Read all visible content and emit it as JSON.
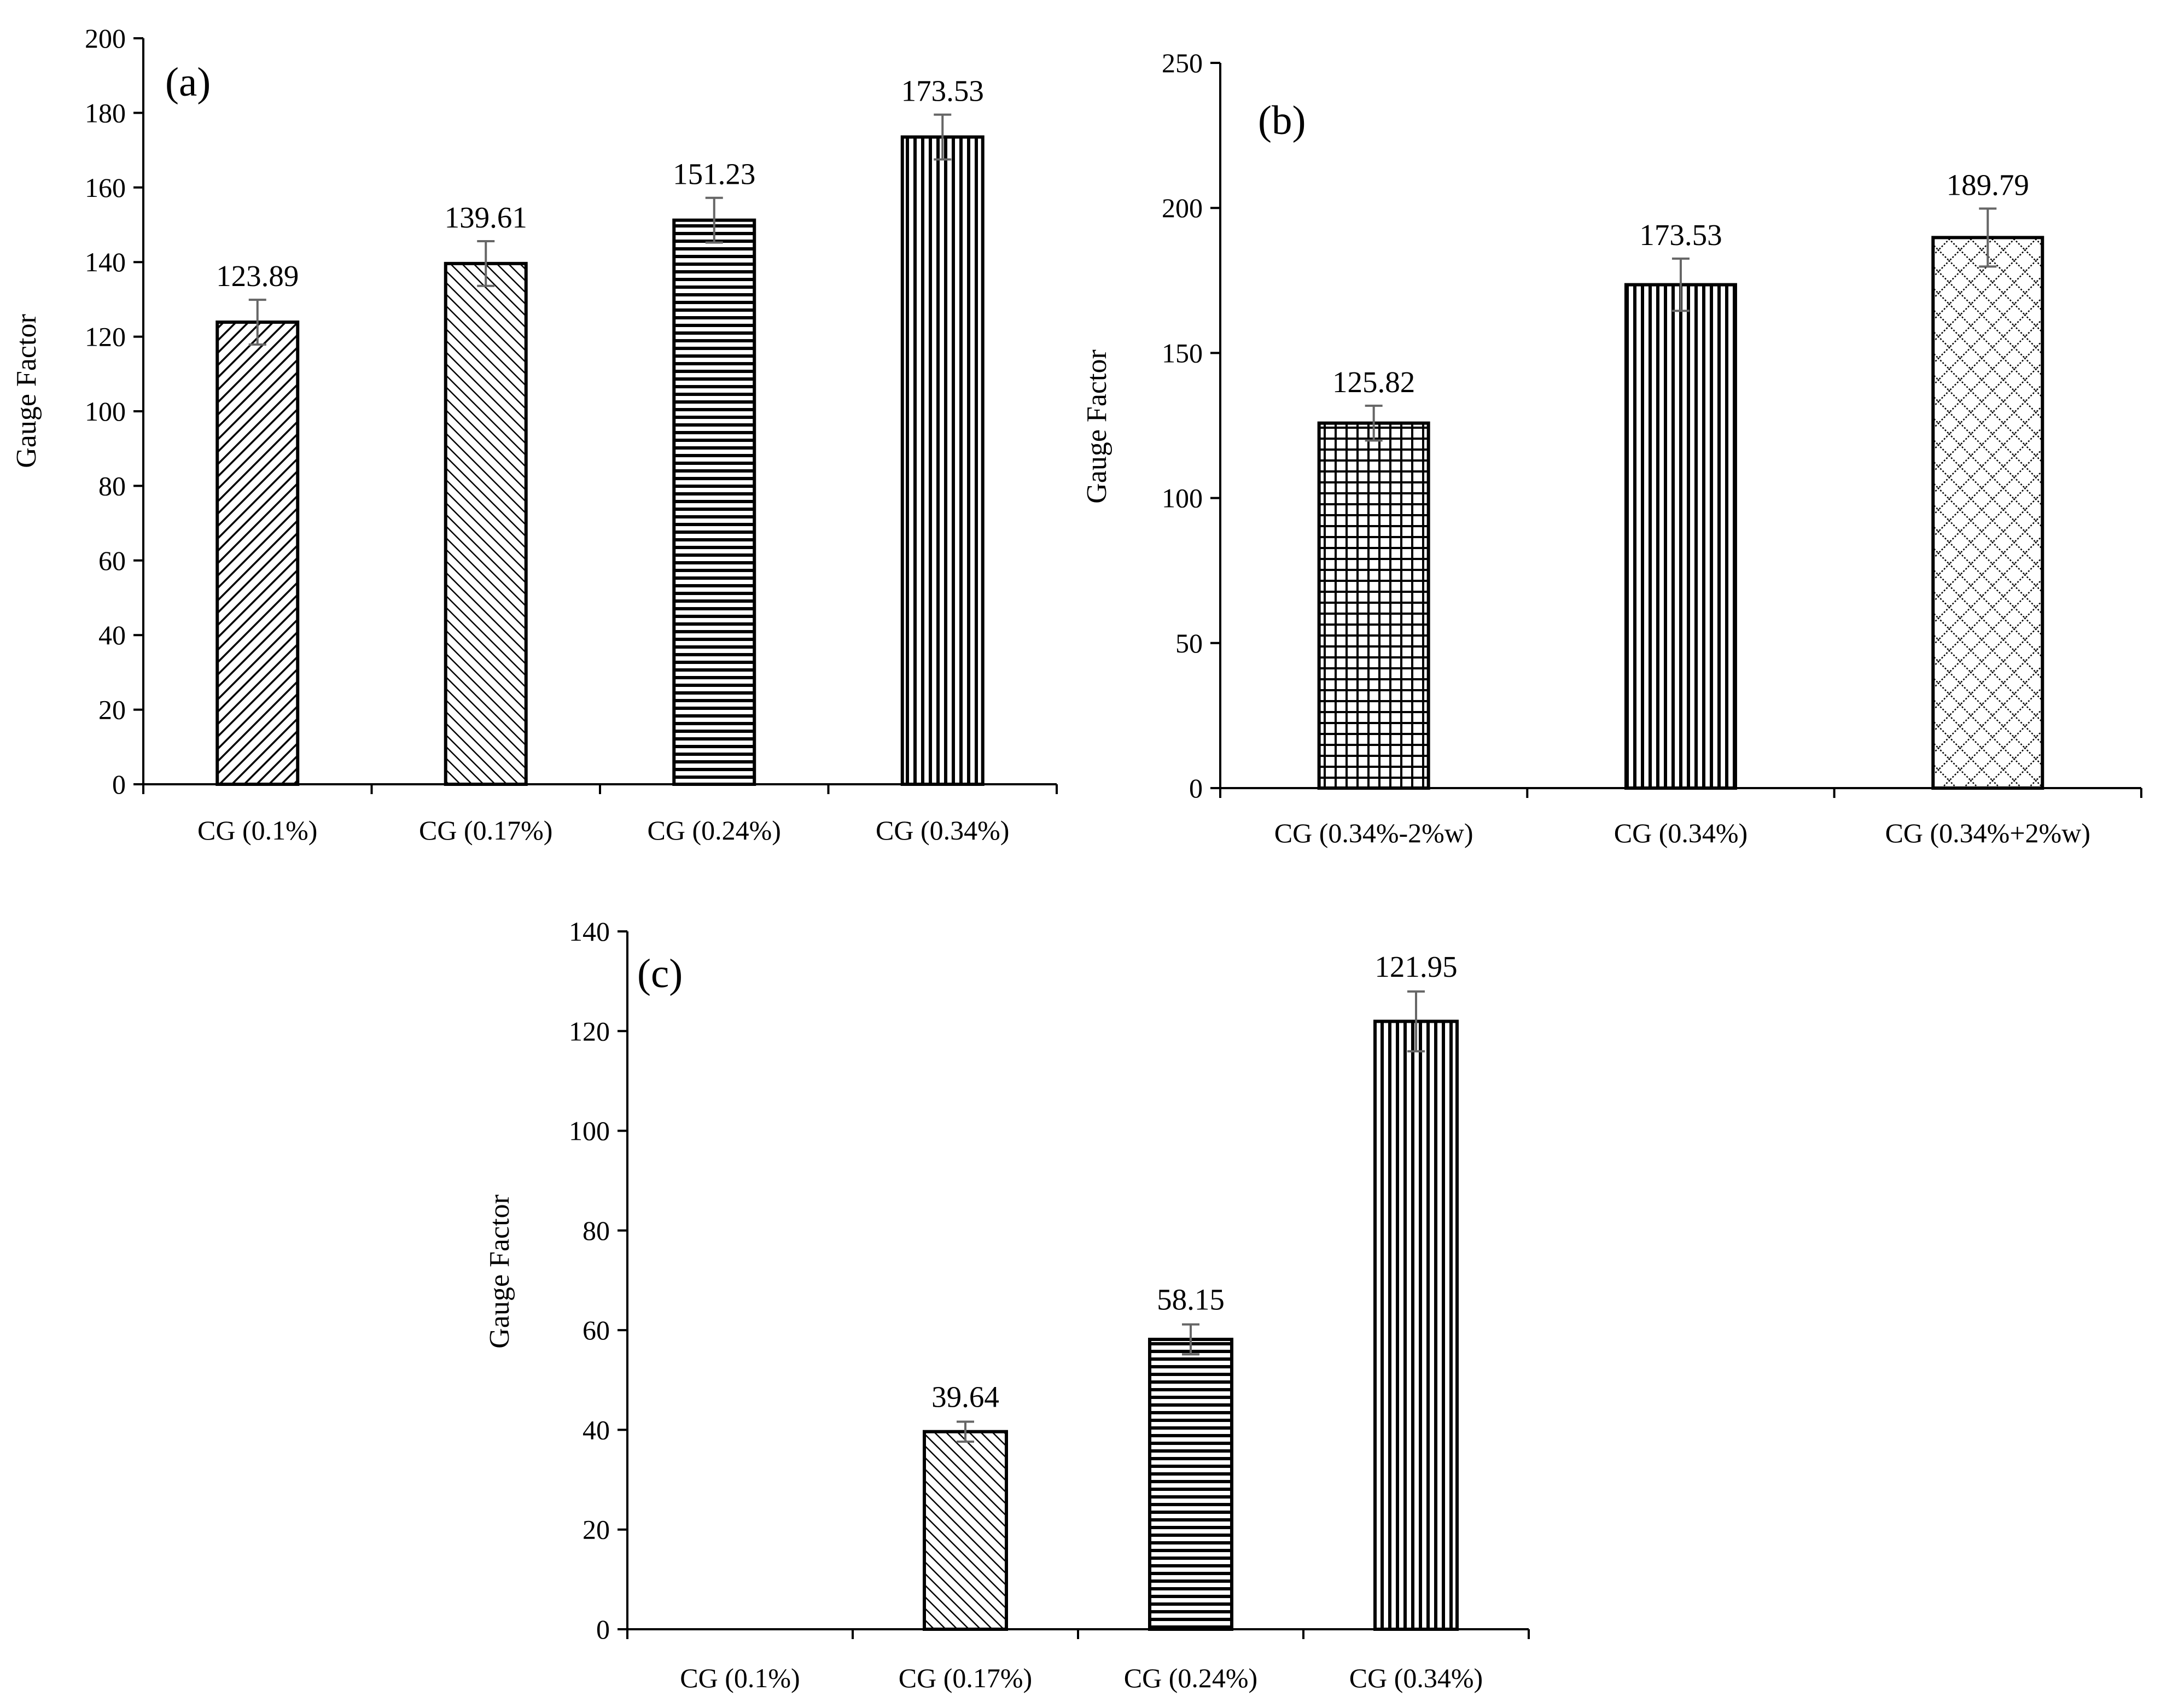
{
  "figure": {
    "description_free": true
  },
  "chart_data": [
    {
      "id": "a",
      "type": "bar",
      "panel_label": "(a)",
      "ylabel": "Gauge Factor",
      "xlabel": "",
      "ylim": [
        0,
        200
      ],
      "yticks": [
        0,
        20,
        40,
        60,
        80,
        100,
        120,
        140,
        160,
        180,
        200
      ],
      "categories": [
        "CG (0.1%)",
        "CG (0.17%)",
        "CG (0.24%)",
        "CG (0.34%)"
      ],
      "values": [
        123.89,
        139.61,
        151.23,
        173.53
      ],
      "labels": [
        "123.89",
        "139.61",
        "151.23",
        "173.53"
      ],
      "errors": [
        6,
        6,
        6,
        6
      ],
      "patterns": [
        "diag-dense",
        "diag-sparse",
        "horizontal",
        "vertical"
      ]
    },
    {
      "id": "b",
      "type": "bar",
      "panel_label": "(b)",
      "ylabel": "Gauge Factor",
      "xlabel": "",
      "ylim": [
        0,
        250
      ],
      "yticks": [
        0,
        50,
        100,
        150,
        200,
        250
      ],
      "categories": [
        "CG (0.34%-2%w)",
        "CG (0.34%)",
        "CG (0.34%+2%w)"
      ],
      "values": [
        125.82,
        173.53,
        189.79
      ],
      "labels": [
        "125.82",
        "173.53",
        "189.79"
      ],
      "errors": [
        6,
        9,
        10
      ],
      "patterns": [
        "grid",
        "vertical",
        "diamond"
      ]
    },
    {
      "id": "c",
      "type": "bar",
      "panel_label": "(c)",
      "ylabel": "Gauge Factor",
      "xlabel": "",
      "ylim": [
        0,
        140
      ],
      "yticks": [
        0,
        20,
        40,
        60,
        80,
        100,
        120,
        140
      ],
      "categories": [
        "CG (0.1%)",
        "CG (0.17%)",
        "CG (0.24%)",
        "CG (0.34%)"
      ],
      "values": [
        0,
        39.64,
        58.15,
        121.95
      ],
      "labels": [
        "",
        "39.64",
        "58.15",
        "121.95"
      ],
      "errors": [
        0,
        2,
        3,
        6
      ],
      "patterns": [
        "none",
        "diag-sparse",
        "horizontal",
        "vertical"
      ]
    }
  ]
}
